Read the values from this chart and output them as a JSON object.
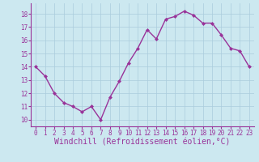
{
  "x": [
    0,
    1,
    2,
    3,
    4,
    5,
    6,
    7,
    8,
    9,
    10,
    11,
    12,
    13,
    14,
    15,
    16,
    17,
    18,
    19,
    20,
    21,
    22,
    23
  ],
  "y": [
    14.0,
    13.3,
    12.0,
    11.3,
    11.0,
    10.6,
    11.0,
    10.0,
    11.7,
    12.9,
    14.3,
    15.4,
    16.8,
    16.1,
    17.6,
    17.8,
    18.2,
    17.9,
    17.3,
    17.3,
    16.4,
    15.4,
    15.2,
    14.0
  ],
  "line_color": "#993399",
  "marker": "D",
  "marker_size": 2.0,
  "bg_color": "#cce8f0",
  "grid_color": "#aaccdd",
  "xlabel": "Windchill (Refroidissement éolien,°C)",
  "xlabel_color": "#993399",
  "tick_color": "#993399",
  "spine_color": "#993399",
  "ylim": [
    9.5,
    18.8
  ],
  "xlim": [
    -0.5,
    23.5
  ],
  "yticks": [
    10,
    11,
    12,
    13,
    14,
    15,
    16,
    17,
    18
  ],
  "xticks": [
    0,
    1,
    2,
    3,
    4,
    5,
    6,
    7,
    8,
    9,
    10,
    11,
    12,
    13,
    14,
    15,
    16,
    17,
    18,
    19,
    20,
    21,
    22,
    23
  ],
  "xtick_labels": [
    "0",
    "1",
    "2",
    "3",
    "4",
    "5",
    "6",
    "7",
    "8",
    "9",
    "10",
    "11",
    "12",
    "13",
    "14",
    "15",
    "16",
    "17",
    "18",
    "19",
    "20",
    "21",
    "22",
    "23"
  ],
  "tick_fontsize": 5.5,
  "xlabel_fontsize": 7.0,
  "linewidth": 1.0
}
